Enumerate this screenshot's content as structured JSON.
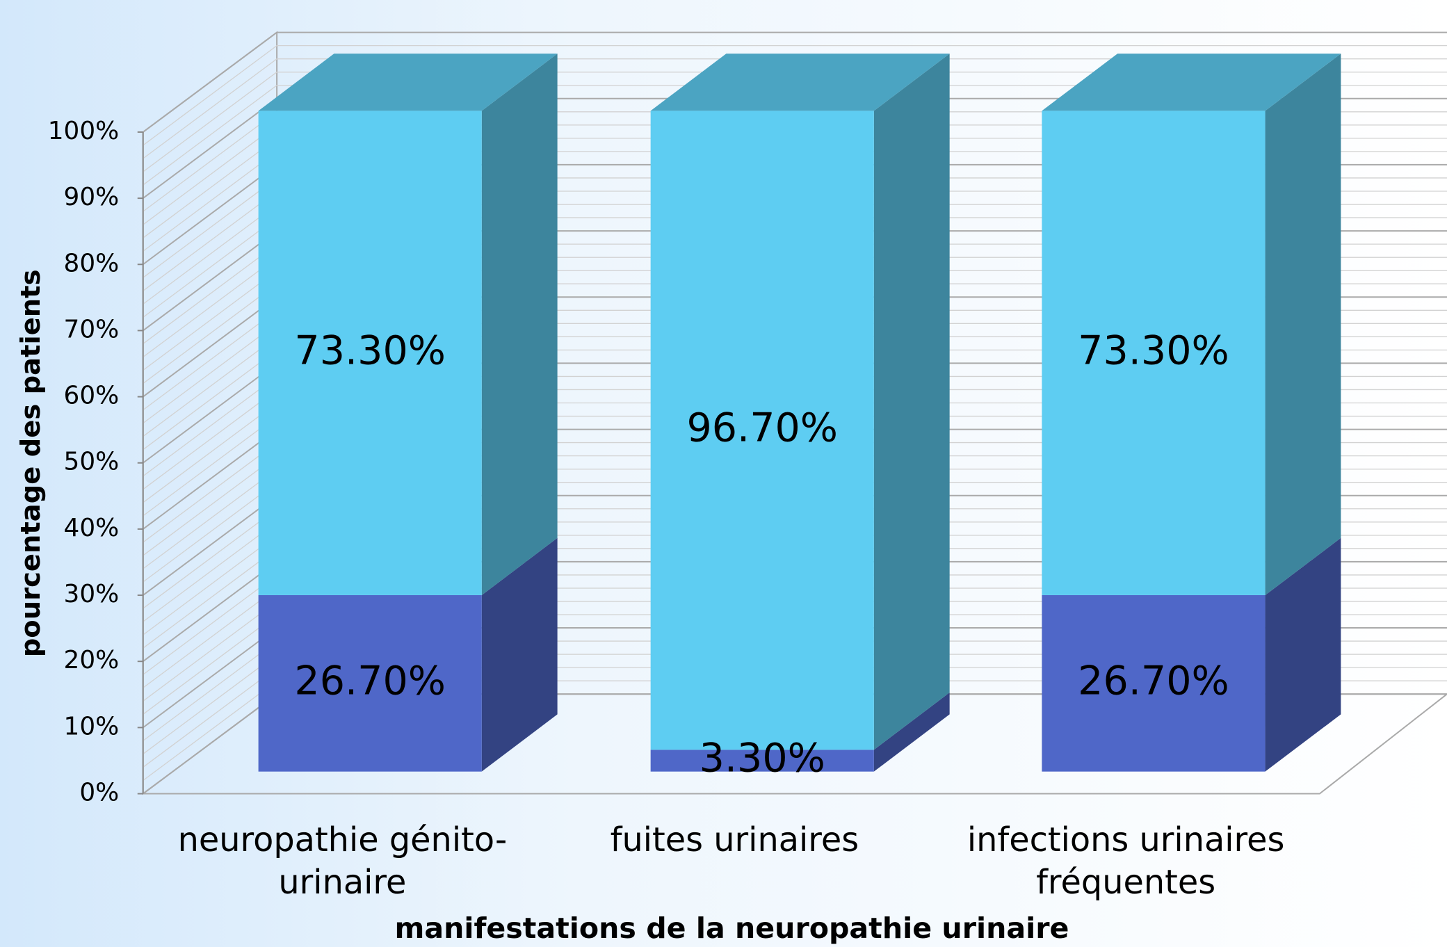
{
  "chart_data": {
    "type": "bar",
    "stacked": true,
    "three_d": true,
    "x_label": "manifestations de la neuropathie urinaire",
    "y_label": "pourcentage des patients",
    "categories": [
      "neuropathie génito-urinaire",
      "fuites urinaires",
      "infections urinaires fréquentes"
    ],
    "series": [
      {
        "color": "#4f67c8",
        "values": [
          26.7,
          3.3,
          26.7
        ],
        "value_labels": [
          "26.70%",
          "3.30%",
          "26.70%"
        ]
      },
      {
        "color": "#5ecdf2",
        "values": [
          73.3,
          96.7,
          73.3
        ],
        "value_labels": [
          "73.30%",
          "96.70%",
          "73.30%"
        ]
      }
    ],
    "ylim": [
      0,
      100
    ],
    "yticks": [
      {
        "value": 0,
        "label": "0%"
      },
      {
        "value": 10,
        "label": "10%"
      },
      {
        "value": 20,
        "label": "20%"
      },
      {
        "value": 30,
        "label": "30%"
      },
      {
        "value": 40,
        "label": "40%"
      },
      {
        "value": 50,
        "label": "50%"
      },
      {
        "value": 60,
        "label": "60%"
      },
      {
        "value": 70,
        "label": "70%"
      },
      {
        "value": 80,
        "label": "80%"
      },
      {
        "value": 90,
        "label": "90%"
      },
      {
        "value": 100,
        "label": "100%"
      }
    ],
    "grid": true
  }
}
